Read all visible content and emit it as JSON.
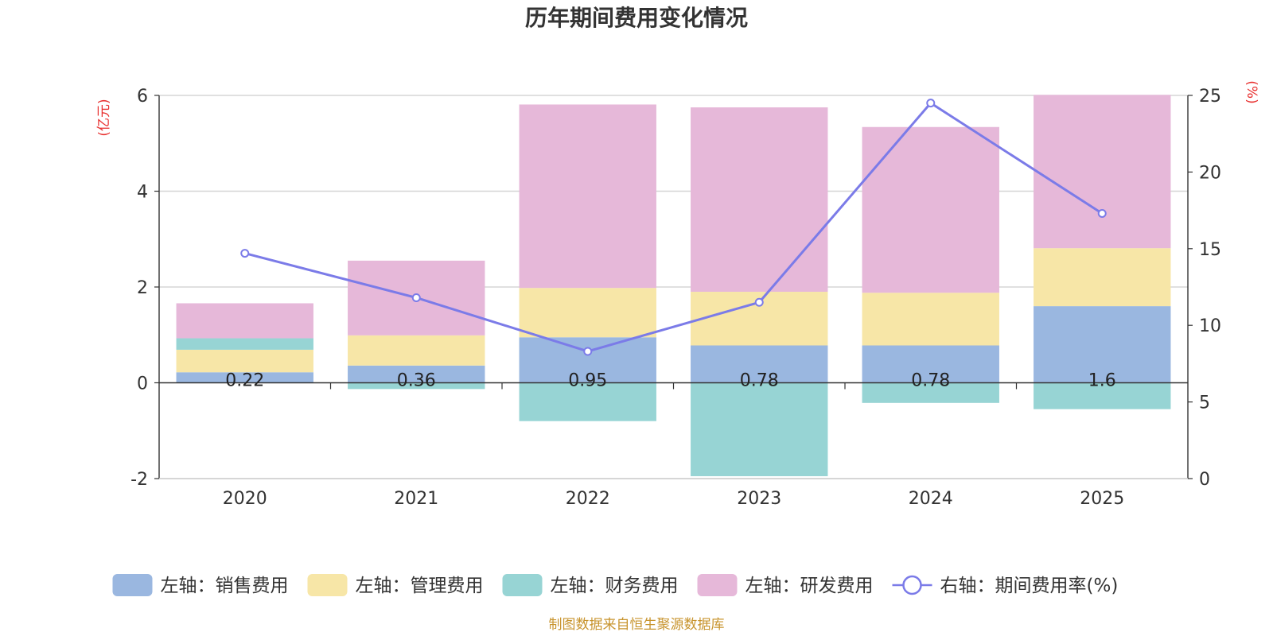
{
  "chart_data": {
    "type": "bar",
    "title": "历年期间费用变化情况",
    "categories": [
      "2020",
      "2021",
      "2022",
      "2023",
      "2024",
      "2025"
    ],
    "left_axis": {
      "unit_label": "(亿元)",
      "ylim": [
        -2,
        6
      ],
      "ticks": [
        -2,
        0,
        2,
        4,
        6
      ]
    },
    "right_axis": {
      "unit_label": "(%)",
      "ylim": [
        0,
        25
      ],
      "ticks": [
        0,
        5,
        10,
        15,
        20,
        25
      ]
    },
    "series": [
      {
        "name": "左轴：销售费用",
        "axis": "left",
        "kind": "bar",
        "color": "#9ab7e0",
        "values": [
          0.22,
          0.36,
          0.95,
          0.78,
          0.78,
          1.6
        ],
        "labels": [
          "0.22",
          "0.36",
          "0.95",
          "0.78",
          "0.78",
          "1.6"
        ]
      },
      {
        "name": "左轴：管理费用",
        "axis": "left",
        "kind": "bar",
        "color": "#f7e6a7",
        "values": [
          0.47,
          0.63,
          1.03,
          1.12,
          1.1,
          1.21
        ]
      },
      {
        "name": "左轴：财务费用",
        "axis": "left",
        "kind": "bar",
        "color": "#97d4d4",
        "values": [
          0.24,
          -0.13,
          -0.8,
          -1.95,
          -0.42,
          -0.55
        ]
      },
      {
        "name": "左轴：研发费用",
        "axis": "left",
        "kind": "bar",
        "color": "#e6b8d9",
        "values": [
          0.73,
          1.56,
          3.83,
          3.85,
          3.46,
          3.2
        ]
      },
      {
        "name": "右轴：期间费用率(%)",
        "axis": "right",
        "kind": "line",
        "color": "#7b7be8",
        "values": [
          14.7,
          11.8,
          8.3,
          11.5,
          24.5,
          17.3
        ]
      }
    ],
    "grid": true,
    "legend_position": "bottom"
  },
  "footer": {
    "source": "制图数据来自恒生聚源数据库"
  }
}
